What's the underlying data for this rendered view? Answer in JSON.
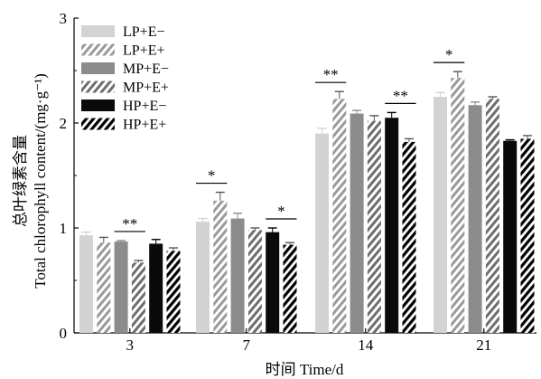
{
  "chart_data": {
    "type": "bar",
    "xlabel": "时间 Time/d",
    "ylabel": "总叶绿素含量",
    "ylabel_en": "Total chlorophyll content/(mg·g⁻¹)",
    "ylim": [
      0,
      3
    ],
    "yticks": [
      "0",
      "1",
      "2",
      "3"
    ],
    "categories": [
      "3",
      "7",
      "14",
      "21"
    ],
    "legend_position": "top-left",
    "series": [
      {
        "name": "LP+E−",
        "color": "#d3d3d3",
        "hatch": false,
        "values": [
          0.93,
          1.06,
          1.9,
          2.25
        ],
        "errors": [
          0.03,
          0.03,
          0.05,
          0.04
        ]
      },
      {
        "name": "LP+E+",
        "color": "#d3d3d3",
        "hatch": true,
        "values": [
          0.86,
          1.26,
          2.23,
          2.43
        ],
        "errors": [
          0.05,
          0.08,
          0.07,
          0.06
        ]
      },
      {
        "name": "MP+E−",
        "color": "#8c8c8c",
        "hatch": false,
        "values": [
          0.87,
          1.09,
          2.09,
          2.17
        ],
        "errors": [
          0.01,
          0.05,
          0.03,
          0.03
        ]
      },
      {
        "name": "MP+E+",
        "color": "#8c8c8c",
        "hatch": true,
        "values": [
          0.67,
          0.98,
          2.02,
          2.23
        ],
        "errors": [
          0.02,
          0.02,
          0.05,
          0.02
        ]
      },
      {
        "name": "HP+E−",
        "color": "#0a0a0a",
        "hatch": false,
        "values": [
          0.85,
          0.96,
          2.05,
          1.83
        ],
        "errors": [
          0.04,
          0.04,
          0.05,
          0.01
        ]
      },
      {
        "name": "HP+E+",
        "color": "#0a0a0a",
        "hatch": true,
        "values": [
          0.78,
          0.84,
          1.82,
          1.85
        ],
        "errors": [
          0.03,
          0.02,
          0.03,
          0.03
        ]
      }
    ],
    "annotations": [
      {
        "category": 0,
        "series_pair": [
          2,
          3
        ],
        "text": "**"
      },
      {
        "category": 1,
        "series_pair": [
          0,
          1
        ],
        "text": "*"
      },
      {
        "category": 1,
        "series_pair": [
          4,
          5
        ],
        "text": "*"
      },
      {
        "category": 2,
        "series_pair": [
          0,
          1
        ],
        "text": "**"
      },
      {
        "category": 2,
        "series_pair": [
          4,
          5
        ],
        "text": "**"
      },
      {
        "category": 3,
        "series_pair": [
          0,
          1
        ],
        "text": "*"
      }
    ]
  }
}
